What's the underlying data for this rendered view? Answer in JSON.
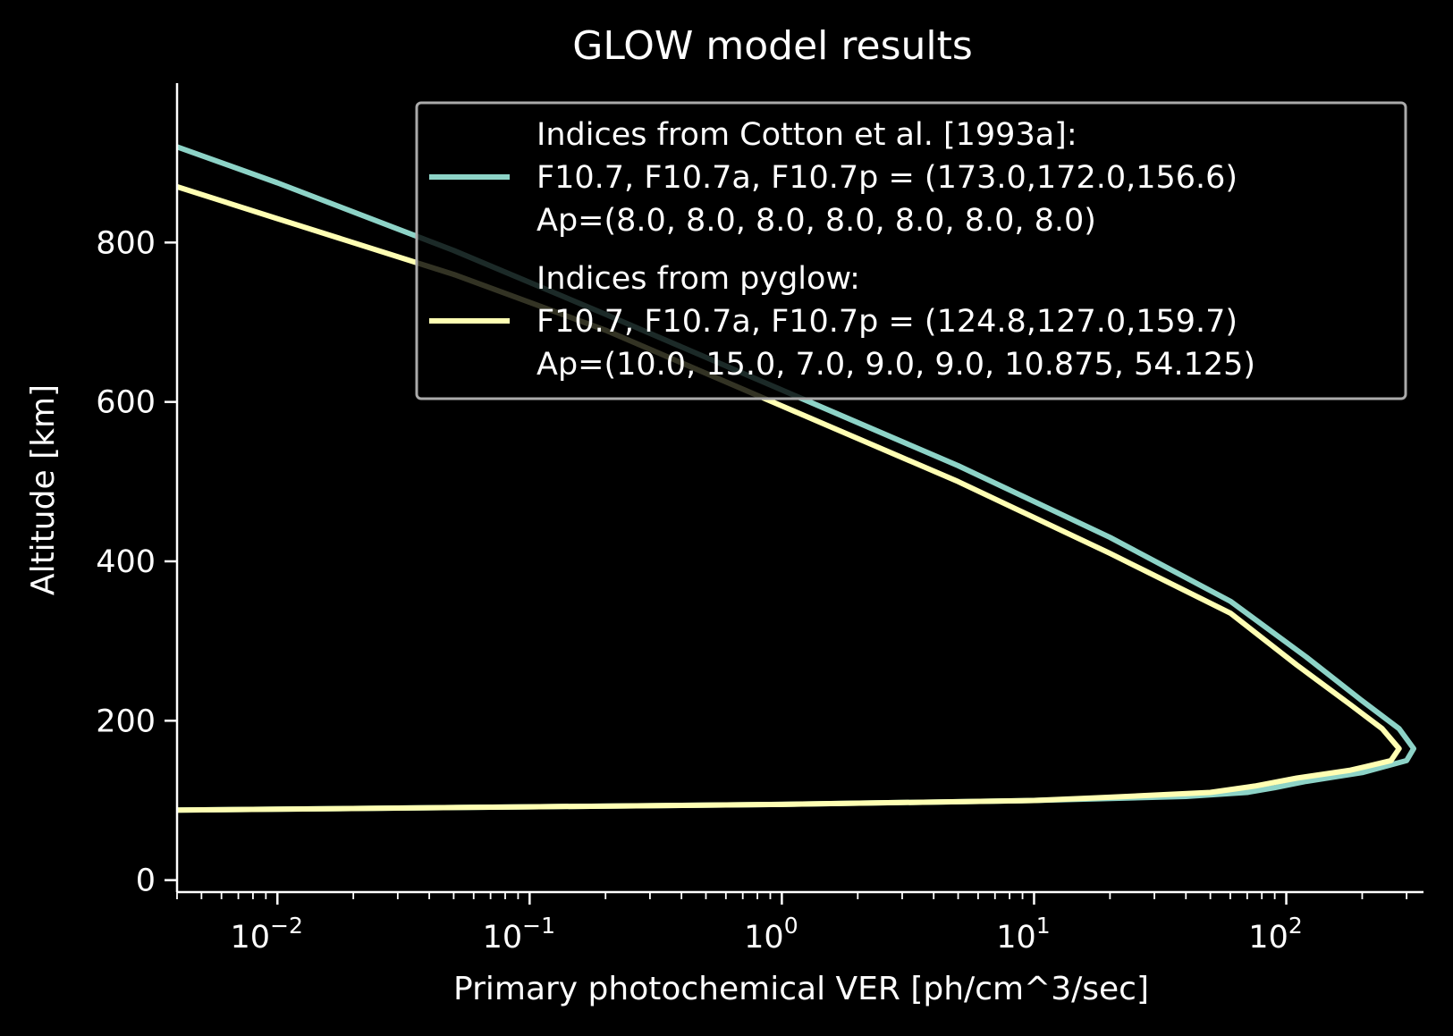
{
  "chart_data": {
    "type": "line",
    "title": "GLOW model results",
    "xlabel": "Primary photochemical VER [ph/cm^3/sec]",
    "ylabel": "Altitude [km]",
    "xscale": "log",
    "xlim": [
      0.004,
      350
    ],
    "ylim": [
      -15,
      1000
    ],
    "x_major_ticks": [
      {
        "value": 0.01,
        "base": "10",
        "exp": "−2"
      },
      {
        "value": 0.1,
        "base": "10",
        "exp": "−1"
      },
      {
        "value": 1,
        "base": "10",
        "exp": "0"
      },
      {
        "value": 10,
        "base": "10",
        "exp": "1"
      },
      {
        "value": 100,
        "base": "10",
        "exp": "2"
      }
    ],
    "y_ticks": [
      0,
      200,
      400,
      600,
      800
    ],
    "y_tick_labels": [
      "0",
      "200",
      "400",
      "600",
      "800"
    ],
    "grid": false,
    "legend_position": "top-right",
    "series": [
      {
        "name": "Indices from Cotton et al. [1993a]:\nF10.7, F10.7a, F10.7p = (173.0,172.0,156.6)\nAp=(8.0, 8.0, 8.0, 8.0, 8.0, 8.0, 8.0)",
        "color": "#8dd3c7",
        "points": [
          [
            0.004,
            920
          ],
          [
            0.01,
            875
          ],
          [
            0.05,
            790
          ],
          [
            0.2,
            710
          ],
          [
            1,
            615
          ],
          [
            5,
            520
          ],
          [
            20,
            430
          ],
          [
            60,
            350
          ],
          [
            120,
            280
          ],
          [
            200,
            225
          ],
          [
            280,
            190
          ],
          [
            320,
            165
          ],
          [
            300,
            150
          ],
          [
            200,
            135
          ],
          [
            120,
            124
          ],
          [
            90,
            116
          ],
          [
            70,
            110
          ],
          [
            40,
            105
          ],
          [
            10,
            100
          ],
          [
            1,
            95
          ],
          [
            0.1,
            92
          ],
          [
            0.01,
            89
          ],
          [
            0.004,
            88
          ]
        ]
      },
      {
        "name": "Indices from pyglow:\nF10.7, F10.7a, F10.7p = (124.8,127.0,159.7)\nAp=(10.0, 15.0, 7.0, 9.0, 9.0, 10.875, 54.125)",
        "color": "#ffffb3",
        "points": [
          [
            0.004,
            870
          ],
          [
            0.01,
            830
          ],
          [
            0.05,
            760
          ],
          [
            0.2,
            690
          ],
          [
            1,
            595
          ],
          [
            5,
            500
          ],
          [
            20,
            410
          ],
          [
            60,
            335
          ],
          [
            110,
            270
          ],
          [
            180,
            220
          ],
          [
            240,
            190
          ],
          [
            280,
            165
          ],
          [
            260,
            150
          ],
          [
            180,
            138
          ],
          [
            110,
            128
          ],
          [
            75,
            118
          ],
          [
            50,
            110
          ],
          [
            20,
            104
          ],
          [
            10,
            100
          ],
          [
            1,
            95
          ],
          [
            0.1,
            92
          ],
          [
            0.01,
            89
          ],
          [
            0.004,
            88
          ]
        ]
      }
    ]
  }
}
